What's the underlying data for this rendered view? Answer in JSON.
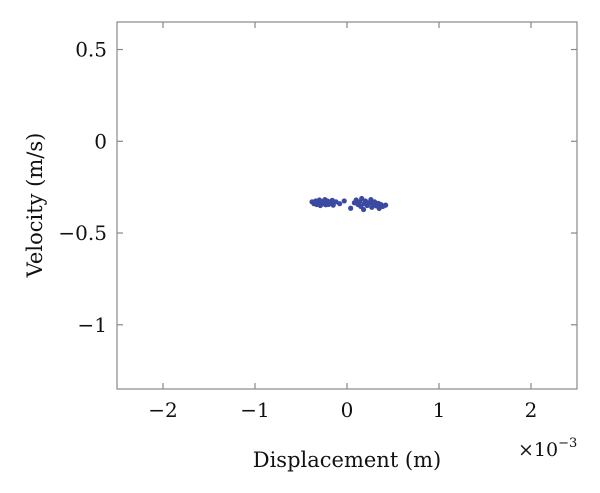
{
  "chart_data": {
    "type": "scatter",
    "xlabel": "Displacement (m)",
    "ylabel": "Velocity (m/s)",
    "x_multiplier": "×10",
    "x_multiplier_exp": "−3",
    "xlim": [
      -0.0025,
      0.0025
    ],
    "ylim": [
      -1.35,
      0.65
    ],
    "xticks": [
      -0.002,
      -0.001,
      0,
      0.001,
      0.002
    ],
    "xtick_labels": [
      "−2",
      "−1",
      "0",
      "1",
      "2"
    ],
    "yticks": [
      0.5,
      0,
      -0.5,
      -1
    ],
    "ytick_labels": [
      "0.5",
      "0",
      "−0.5",
      "−1"
    ],
    "grid": false,
    "marker_color": "#3a4aa0",
    "series": [
      {
        "points": [
          [
            -0.00038,
            -0.33
          ],
          [
            -0.00036,
            -0.34
          ],
          [
            -0.00034,
            -0.325
          ],
          [
            -0.00033,
            -0.345
          ],
          [
            -0.00031,
            -0.335
          ],
          [
            -0.0003,
            -0.32
          ],
          [
            -0.00029,
            -0.35
          ],
          [
            -0.00028,
            -0.332
          ],
          [
            -0.00027,
            -0.342
          ],
          [
            -0.00026,
            -0.328
          ],
          [
            -0.00025,
            -0.338
          ],
          [
            -0.00024,
            -0.318
          ],
          [
            -0.00023,
            -0.346
          ],
          [
            -0.00022,
            -0.334
          ],
          [
            -0.00021,
            -0.326
          ],
          [
            -0.0002,
            -0.344
          ],
          [
            -0.00018,
            -0.336
          ],
          [
            -0.00016,
            -0.322
          ],
          [
            -0.00015,
            -0.348
          ],
          [
            -0.00012,
            -0.33
          ],
          [
            -8e-05,
            -0.34
          ],
          [
            -3e-05,
            -0.325
          ],
          [
            4e-05,
            -0.365
          ],
          [
            8e-05,
            -0.335
          ],
          [
            0.0001,
            -0.32
          ],
          [
            0.00012,
            -0.345
          ],
          [
            0.00014,
            -0.33
          ],
          [
            0.00015,
            -0.355
          ],
          [
            0.00016,
            -0.312
          ],
          [
            0.00018,
            -0.372
          ],
          [
            0.00019,
            -0.34
          ],
          [
            0.0002,
            -0.325
          ],
          [
            0.00022,
            -0.35
          ],
          [
            0.00024,
            -0.335
          ],
          [
            0.00026,
            -0.318
          ],
          [
            0.00027,
            -0.36
          ],
          [
            0.00028,
            -0.342
          ],
          [
            0.0003,
            -0.33
          ],
          [
            0.00032,
            -0.352
          ],
          [
            0.00034,
            -0.338
          ],
          [
            0.00035,
            -0.366
          ],
          [
            0.00037,
            -0.345
          ],
          [
            0.00039,
            -0.355
          ],
          [
            0.00042,
            -0.348
          ]
        ]
      }
    ]
  }
}
